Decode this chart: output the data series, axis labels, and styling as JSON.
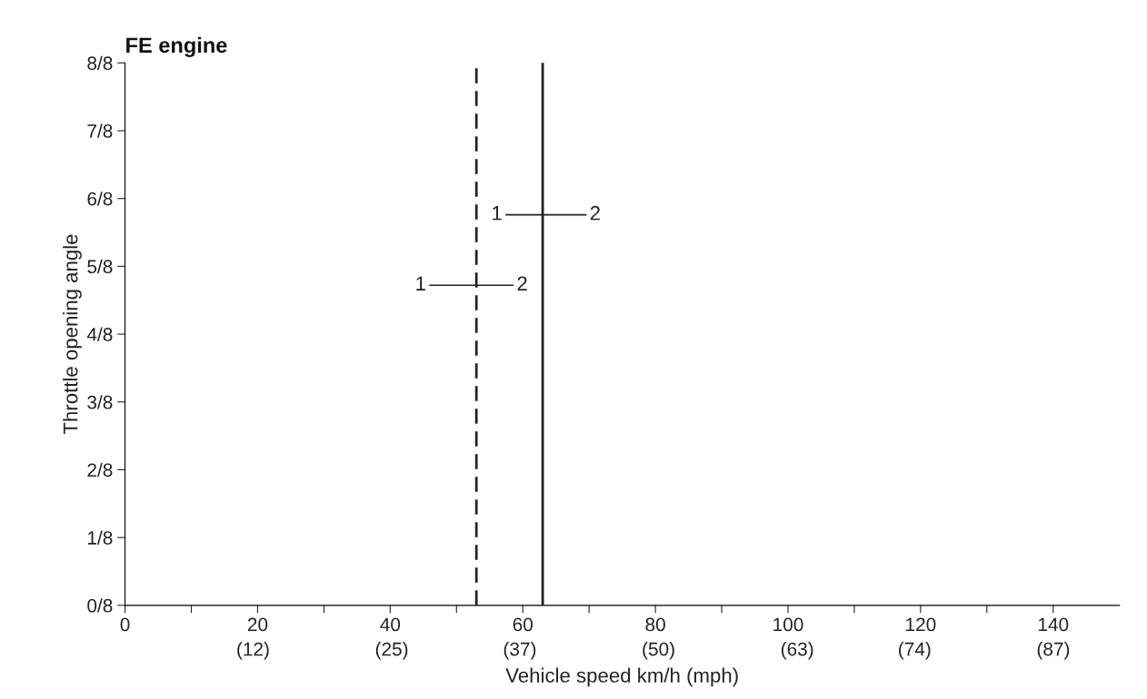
{
  "chart_data": {
    "type": "line",
    "title": "FE engine",
    "xlabel": "Vehicle speed km/h (mph)",
    "ylabel": "Throttle opening angle",
    "series": [
      {
        "x": [
          53,
          53
        ],
        "values": [
          0,
          1
        ],
        "color": "#222222",
        "line_style": "dashed"
      },
      {
        "x": [
          63,
          63
        ],
        "values": [
          0,
          1
        ],
        "color": "#222222",
        "line_style": "solid"
      },
      {
        "x": [
          46,
          58.5
        ],
        "values": [
          0.59,
          0.59
        ],
        "color": "#222222",
        "line_style": "solid"
      },
      {
        "x": [
          57.5,
          69.5
        ],
        "values": [
          0.72,
          0.72
        ],
        "color": "#222222",
        "line_style": "solid"
      }
    ],
    "annotations": [
      {
        "text": "1",
        "x": 46,
        "y": 0.59
      },
      {
        "text": "2",
        "x": 58.5,
        "y": 0.59
      },
      {
        "text": "1",
        "x": 57.5,
        "y": 0.72
      },
      {
        "text": "2",
        "x": 69.5,
        "y": 0.72
      }
    ],
    "xlim": [
      0,
      150
    ],
    "xticks": [
      0,
      {
        "value": 10,
        "label": null
      },
      20,
      {
        "value": 30,
        "label": null
      },
      40,
      {
        "value": 50,
        "label": null
      },
      60,
      {
        "value": 70,
        "label": null
      },
      80,
      {
        "value": 90,
        "label": null
      },
      100,
      {
        "value": 110,
        "label": null
      },
      120,
      {
        "value": 130,
        "label": null
      },
      140
    ],
    "x2lim": [
      0,
      93.2
    ],
    "x2ticks": [
      {
        "value": 12,
        "label": "(12)"
      },
      {
        "value": 25,
        "label": "(25)"
      },
      {
        "value": 37,
        "label": "(37)"
      },
      {
        "value": 50,
        "label": "(50)"
      },
      {
        "value": 63,
        "label": "(63)"
      },
      {
        "value": 74,
        "label": "(74)"
      },
      {
        "value": 87,
        "label": "(87)"
      }
    ],
    "ylim": [
      0,
      1
    ],
    "yticks": [
      {
        "value": 0,
        "label": "0/8"
      },
      {
        "value": 0.125,
        "label": "1/8"
      },
      {
        "value": 0.25,
        "label": "2/8"
      },
      {
        "value": 0.375,
        "label": "3/8"
      },
      {
        "value": 0.5,
        "label": "4/8"
      },
      {
        "value": 0.625,
        "label": "5/8"
      },
      {
        "value": 0.75,
        "label": "6/8"
      },
      {
        "value": 0.875,
        "label": "7/8"
      },
      {
        "value": 1,
        "label": "8/8"
      }
    ],
    "grid": false,
    "legend": false
  }
}
